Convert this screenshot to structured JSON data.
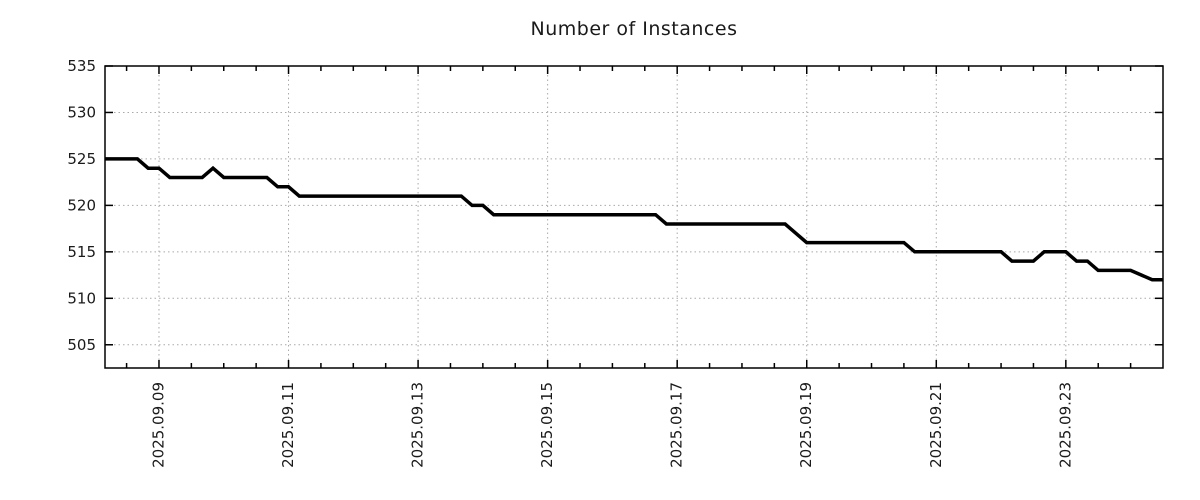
{
  "colors": {
    "background": "#ffffff",
    "line": "#000000",
    "axis": "#000000",
    "grid": "#a9a9a9",
    "text": "#1a1a1a"
  },
  "chart_data": {
    "type": "line",
    "title": "Number of Instances",
    "xlabel": "",
    "ylabel": "",
    "grid": true,
    "legend": "none",
    "line_color": "#000000",
    "line_width": 3.5,
    "ylim": [
      502.5,
      535
    ],
    "y_ticks": [
      505,
      510,
      515,
      520,
      525,
      530,
      535
    ],
    "xlim": [
      "2025-09-08T04:00",
      "2025-09-24T12:00"
    ],
    "x_ticks": [
      {
        "date": "2025-09-09T00:00",
        "label": "2025.09.09"
      },
      {
        "date": "2025-09-11T00:00",
        "label": "2025.09.11"
      },
      {
        "date": "2025-09-13T00:00",
        "label": "2025.09.13"
      },
      {
        "date": "2025-09-15T00:00",
        "label": "2025.09.15"
      },
      {
        "date": "2025-09-17T00:00",
        "label": "2025.09.17"
      },
      {
        "date": "2025-09-19T00:00",
        "label": "2025.09.19"
      },
      {
        "date": "2025-09-21T00:00",
        "label": "2025.09.21"
      },
      {
        "date": "2025-09-23T00:00",
        "label": "2025.09.23"
      }
    ],
    "x_minor_interval_days": 0.5,
    "points": [
      [
        "2025-09-08T04:00",
        525
      ],
      [
        "2025-09-08T16:00",
        525
      ],
      [
        "2025-09-08T20:00",
        524
      ],
      [
        "2025-09-09T00:00",
        524
      ],
      [
        "2025-09-09T04:00",
        523
      ],
      [
        "2025-09-09T16:00",
        523
      ],
      [
        "2025-09-09T20:00",
        524
      ],
      [
        "2025-09-10T00:00",
        523
      ],
      [
        "2025-09-10T16:00",
        523
      ],
      [
        "2025-09-10T20:00",
        522
      ],
      [
        "2025-09-11T00:00",
        522
      ],
      [
        "2025-09-11T04:00",
        521
      ],
      [
        "2025-09-13T16:00",
        521
      ],
      [
        "2025-09-13T20:00",
        520
      ],
      [
        "2025-09-14T00:00",
        520
      ],
      [
        "2025-09-14T04:00",
        519
      ],
      [
        "2025-09-16T16:00",
        519
      ],
      [
        "2025-09-16T20:00",
        518
      ],
      [
        "2025-09-18T16:00",
        518
      ],
      [
        "2025-09-18T20:00",
        517
      ],
      [
        "2025-09-19T00:00",
        516
      ],
      [
        "2025-09-20T12:00",
        516
      ],
      [
        "2025-09-20T16:00",
        515
      ],
      [
        "2025-09-22T00:00",
        515
      ],
      [
        "2025-09-22T04:00",
        514
      ],
      [
        "2025-09-22T12:00",
        514
      ],
      [
        "2025-09-22T16:00",
        515
      ],
      [
        "2025-09-23T00:00",
        515
      ],
      [
        "2025-09-23T04:00",
        514
      ],
      [
        "2025-09-23T08:00",
        514
      ],
      [
        "2025-09-23T12:00",
        513
      ],
      [
        "2025-09-24T00:00",
        513
      ],
      [
        "2025-09-24T08:00",
        512
      ],
      [
        "2025-09-24T12:00",
        512
      ]
    ]
  }
}
